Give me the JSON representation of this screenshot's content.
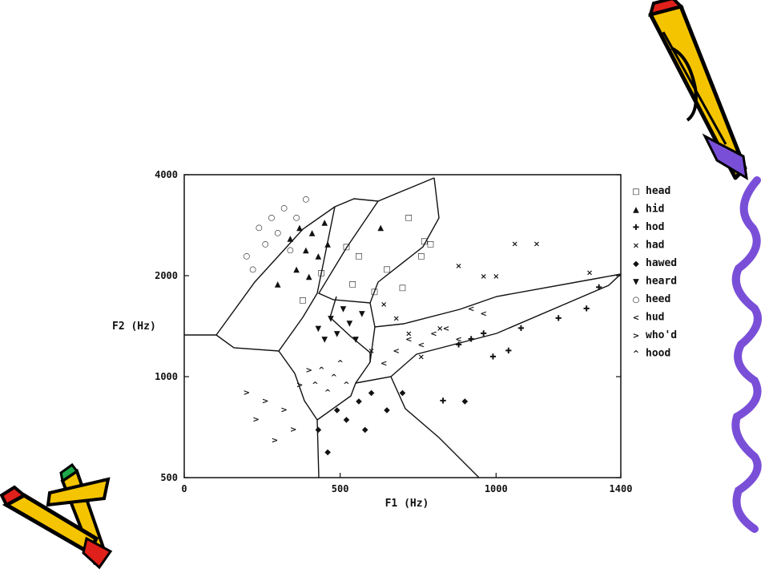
{
  "chart_data": {
    "type": "scatter",
    "title": "",
    "xlabel": "F1 (Hz)",
    "ylabel": "F2 (Hz)",
    "xlim": [
      0,
      1400
    ],
    "ylim": [
      500,
      4000
    ],
    "y_scale": "log",
    "x_ticks": [
      0,
      500,
      1000,
      1400
    ],
    "y_ticks": [
      500,
      1000,
      2000,
      4000
    ],
    "grid": false,
    "legend_position": "right",
    "colors": {
      "ink": "#111111",
      "background": "#ffffff"
    },
    "series": [
      {
        "name": "head",
        "symbol": "□",
        "x": [
          380,
          440,
          520,
          540,
          560,
          610,
          650,
          700,
          720,
          760,
          770,
          790
        ],
        "y": [
          1700,
          2050,
          2450,
          1900,
          2300,
          1800,
          2100,
          1850,
          3000,
          2300,
          2550,
          2500
        ]
      },
      {
        "name": "hid",
        "symbol": "▲",
        "x": [
          300,
          340,
          360,
          370,
          390,
          400,
          410,
          430,
          450,
          460,
          630
        ],
        "y": [
          1900,
          2600,
          2100,
          2800,
          2400,
          2000,
          2700,
          2300,
          2900,
          2500,
          2800
        ]
      },
      {
        "name": "hod",
        "symbol": "✚",
        "x": [
          830,
          880,
          920,
          960,
          990,
          1040,
          1080,
          1200,
          1290,
          1330
        ],
        "y": [
          850,
          1250,
          1300,
          1350,
          1150,
          1200,
          1400,
          1500,
          1600,
          1850
        ]
      },
      {
        "name": "had",
        "symbol": "×",
        "x": [
          600,
          640,
          680,
          720,
          760,
          820,
          880,
          960,
          1000,
          1060,
          1130,
          1300
        ],
        "y": [
          1200,
          1650,
          1500,
          1350,
          1150,
          1400,
          2150,
          2000,
          2000,
          2500,
          2500,
          2050
        ]
      },
      {
        "name": "hawed",
        "symbol": "◆",
        "x": [
          430,
          460,
          490,
          520,
          560,
          580,
          600,
          650,
          700,
          900
        ],
        "y": [
          700,
          600,
          800,
          750,
          850,
          700,
          900,
          800,
          900,
          850
        ]
      },
      {
        "name": "heard",
        "symbol": "▼",
        "x": [
          430,
          450,
          470,
          490,
          510,
          530,
          550,
          570
        ],
        "y": [
          1400,
          1300,
          1500,
          1350,
          1600,
          1450,
          1300,
          1550
        ]
      },
      {
        "name": "heed",
        "symbol": "○",
        "x": [
          200,
          220,
          240,
          260,
          280,
          300,
          320,
          340,
          360,
          390
        ],
        "y": [
          2300,
          2100,
          2800,
          2500,
          3000,
          2700,
          3200,
          2400,
          3000,
          3400
        ]
      },
      {
        "name": "hud",
        "symbol": "<",
        "x": [
          640,
          680,
          720,
          760,
          800,
          840,
          880,
          920,
          960
        ],
        "y": [
          1100,
          1200,
          1300,
          1250,
          1350,
          1400,
          1300,
          1600,
          1550
        ]
      },
      {
        "name": "who'd",
        "symbol": ">",
        "x": [
          200,
          230,
          260,
          290,
          320,
          350,
          370,
          400
        ],
        "y": [
          900,
          750,
          850,
          650,
          800,
          700,
          950,
          1050
        ]
      },
      {
        "name": "hood",
        "symbol": "^",
        "x": [
          420,
          440,
          460,
          480,
          500,
          520
        ],
        "y": [
          950,
          1050,
          900,
          1000,
          1100,
          950
        ]
      }
    ]
  }
}
